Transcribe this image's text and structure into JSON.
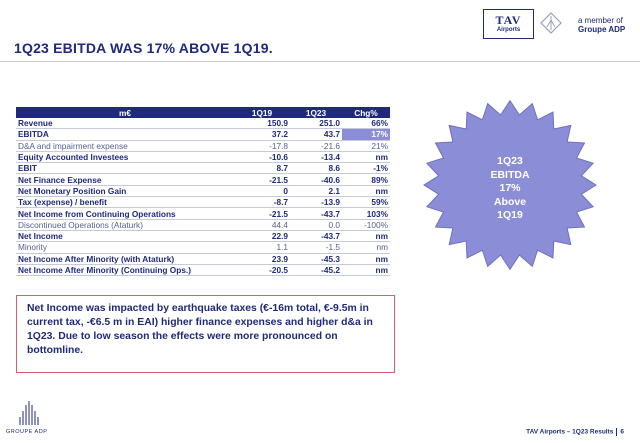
{
  "header": {
    "title": "1Q23 EBITDA WAS 17% ABOVE 1Q19.",
    "logo_tav": "TAV",
    "logo_airports": "Airports",
    "member_line1": "a member of",
    "member_line2": "Groupe ADP"
  },
  "table": {
    "columns": [
      "m€",
      "1Q19",
      "1Q23",
      "Chg%"
    ],
    "rows": [
      {
        "label": "Revenue",
        "q19": "150.9",
        "q23": "251.0",
        "chg": "66%"
      },
      {
        "label": "EBITDA",
        "q19": "37.2",
        "q23": "43.7",
        "chg": "17%"
      },
      {
        "label": "D&A and impairment expense",
        "q19": "-17.8",
        "q23": "-21.6",
        "chg": "21%"
      },
      {
        "label": "Equity Accounted Investees",
        "q19": "-10.6",
        "q23": "-13.4",
        "chg": "nm"
      },
      {
        "label": "EBIT",
        "q19": "8.7",
        "q23": "8.6",
        "chg": "-1%"
      },
      {
        "label": "Net Finance Expense",
        "q19": "-21.5",
        "q23": "-40.6",
        "chg": "89%"
      },
      {
        "label": "Net Monetary Position Gain",
        "q19": "0",
        "q23": "2.1",
        "chg": "nm"
      },
      {
        "label": "Tax (expense) / benefit",
        "q19": "-8.7",
        "q23": "-13.9",
        "chg": "59%"
      },
      {
        "label": "Net Income from Continuing Operations",
        "q19": "-21.5",
        "q23": "-43.7",
        "chg": "103%"
      },
      {
        "label": "Discontinued Operations (Ataturk)",
        "q19": "44.4",
        "q23": "0.0",
        "chg": "-100%"
      },
      {
        "label": "Net Income",
        "q19": "22.9",
        "q23": "-43.7",
        "chg": "nm"
      },
      {
        "label": "Minority",
        "q19": "1.1",
        "q23": "-1.5",
        "chg": "nm"
      },
      {
        "label": "Net Income After Minority (with Ataturk)",
        "q19": "23.9",
        "q23": "-45.3",
        "chg": "nm"
      },
      {
        "label": "Net Income After Minority (Continuing Ops.)",
        "q19": "-20.5",
        "q23": "-45.2",
        "chg": "nm"
      }
    ]
  },
  "note": "Net Income was impacted by earthquake taxes (€-16m total, €-9.5m in current tax, -€6.5 m in EAI) higher finance expenses and higher d&a in 1Q23.  Due to low season the effects were more pronounced on bottomline.",
  "badge": {
    "line1": "1Q23",
    "line2": "EBITDA",
    "line3": "17%",
    "line4": "Above",
    "line5": "1Q19"
  },
  "footer": {
    "brand": "GROUPE ADP",
    "text": "TAV Airports – 1Q23  Results",
    "page": "6"
  },
  "colors": {
    "navy": "#1f2a7a",
    "badge": "#8b8ed6",
    "note_border": "#e35a6a"
  }
}
